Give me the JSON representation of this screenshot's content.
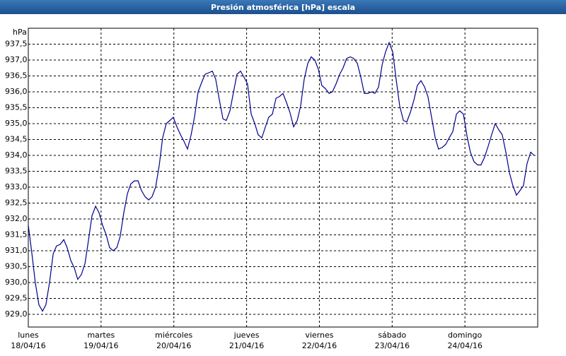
{
  "chart_data": {
    "type": "line",
    "title": "Presión atmosférica [hPa] escala",
    "y_label": "hPa",
    "color": "#00008b",
    "grid": true,
    "xlim": [
      0,
      168
    ],
    "xticks": [
      {
        "value": 0,
        "label": "lunes"
      },
      {
        "value": 24,
        "label": "martes"
      },
      {
        "value": 48,
        "label": "miércoles"
      },
      {
        "value": 72,
        "label": "jueves"
      },
      {
        "value": 96,
        "label": "viernes"
      },
      {
        "value": 120,
        "label": "sábado"
      },
      {
        "value": 144,
        "label": "domingo"
      }
    ],
    "xtick_dates": [
      "18/04/16",
      "19/04/16",
      "20/04/16",
      "21/04/16",
      "22/04/16",
      "23/04/16",
      "24/04/16"
    ],
    "ylim": [
      928.6,
      938.0
    ],
    "yticks": [
      {
        "value": 929,
        "label": "929,0"
      },
      {
        "value": 929.5,
        "label": "929,5"
      },
      {
        "value": 930,
        "label": "930,0"
      },
      {
        "value": 930.5,
        "label": "930,5"
      },
      {
        "value": 931,
        "label": "931,0"
      },
      {
        "value": 931.5,
        "label": "931,5"
      },
      {
        "value": 932,
        "label": "932,0"
      },
      {
        "value": 932.5,
        "label": "932,5"
      },
      {
        "value": 933,
        "label": "933,0"
      },
      {
        "value": 933.5,
        "label": "933,5"
      },
      {
        "value": 934,
        "label": "934,0"
      },
      {
        "value": 934.5,
        "label": "934,5"
      },
      {
        "value": 935,
        "label": "935,0"
      },
      {
        "value": 935.5,
        "label": "935,5"
      },
      {
        "value": 936,
        "label": "936,0"
      },
      {
        "value": 936.5,
        "label": "936,5"
      },
      {
        "value": 937,
        "label": "937,0"
      },
      {
        "value": 937.5,
        "label": "937,5"
      }
    ],
    "x": [
      0,
      1.2,
      2.3,
      3.5,
      4.7,
      5.8,
      7,
      8.2,
      9.3,
      10.5,
      11.7,
      12.8,
      14,
      15.2,
      16.3,
      17.5,
      18.7,
      19.8,
      21,
      22.2,
      23.3,
      24.5,
      25.7,
      26.8,
      28,
      29.2,
      30.3,
      31.5,
      32.7,
      33.8,
      35,
      36.2,
      37.3,
      38.5,
      39.7,
      40.8,
      42,
      43.2,
      44.3,
      45.5,
      46.7,
      47.8,
      49,
      50.2,
      51.3,
      52.5,
      53.7,
      54.8,
      56,
      57.2,
      58.3,
      59.5,
      60.7,
      61.8,
      63,
      64.2,
      65.3,
      66.5,
      67.7,
      68.8,
      70,
      71.2,
      72.3,
      73.5,
      74.7,
      75.8,
      77,
      78.2,
      79.3,
      80.5,
      81.7,
      82.8,
      84,
      85.2,
      86.3,
      87.5,
      88.7,
      89.8,
      91,
      92.2,
      93.3,
      94.5,
      95.7,
      96.8,
      98,
      99.2,
      100.3,
      101.5,
      102.7,
      103.8,
      105,
      106.2,
      107.3,
      108.5,
      109.7,
      110.8,
      112,
      113.2,
      114.3,
      115.5,
      116.7,
      117.8,
      119,
      120.2,
      121.3,
      122.5,
      123.7,
      124.8,
      126,
      127.2,
      128.3,
      129.5,
      130.7,
      131.8,
      133,
      134.2,
      135.3,
      136.5,
      137.7,
      138.8,
      140,
      141.2,
      142.3,
      143.5,
      144.7,
      145.8,
      147,
      148.2,
      149.3,
      150.5,
      151.7,
      152.8,
      154,
      155.2,
      156.3,
      157.5,
      158.7,
      159.8,
      161,
      162.2,
      163.3,
      164.5,
      165.7,
      166.8
    ],
    "values": [
      931.8,
      930.9,
      930.0,
      929.3,
      929.1,
      929.3,
      930.0,
      930.9,
      931.15,
      931.2,
      931.35,
      931.1,
      930.7,
      930.45,
      930.1,
      930.25,
      930.6,
      931.3,
      932.1,
      932.4,
      932.2,
      931.8,
      931.5,
      931.1,
      931.0,
      931.1,
      931.45,
      932.2,
      932.8,
      933.1,
      933.2,
      933.2,
      932.9,
      932.7,
      932.6,
      932.7,
      933.0,
      933.7,
      934.55,
      935.0,
      935.1,
      935.2,
      934.9,
      934.65,
      934.45,
      934.2,
      934.65,
      935.2,
      936.0,
      936.3,
      936.55,
      936.6,
      936.65,
      936.4,
      935.75,
      935.15,
      935.1,
      935.4,
      936.0,
      936.55,
      936.65,
      936.45,
      936.25,
      935.3,
      935.0,
      934.65,
      934.55,
      934.9,
      935.2,
      935.3,
      935.8,
      935.85,
      935.95,
      935.65,
      935.35,
      934.9,
      935.1,
      935.55,
      936.4,
      936.9,
      937.1,
      937.0,
      936.7,
      936.2,
      936.1,
      935.95,
      936.0,
      936.25,
      936.55,
      936.75,
      937.05,
      937.1,
      937.05,
      936.9,
      936.45,
      935.95,
      935.95,
      936.0,
      935.95,
      936.15,
      936.85,
      937.25,
      937.55,
      937.25,
      936.4,
      935.55,
      935.1,
      935.05,
      935.35,
      935.75,
      936.2,
      936.35,
      936.15,
      935.85,
      935.2,
      934.55,
      934.2,
      934.25,
      934.35,
      934.55,
      934.75,
      935.3,
      935.4,
      935.3,
      934.6,
      934.1,
      933.8,
      933.7,
      933.7,
      933.95,
      934.3,
      934.65,
      935.0,
      934.8,
      934.65,
      934.1,
      933.45,
      933.05,
      932.75,
      932.9,
      933.05,
      933.75,
      934.1,
      934.0
    ]
  }
}
